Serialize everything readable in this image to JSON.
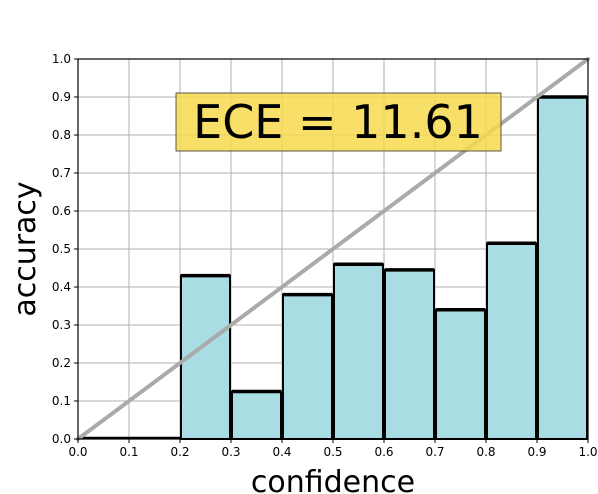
{
  "chart_data": {
    "type": "bar",
    "xlabel": "confidence",
    "ylabel": "accuracy",
    "xlim": [
      0.0,
      1.0
    ],
    "ylim": [
      0.0,
      1.0
    ],
    "grid": true,
    "x_ticks": [
      "0.0",
      "0.1",
      "0.2",
      "0.3",
      "0.4",
      "0.5",
      "0.6",
      "0.7",
      "0.8",
      "0.9",
      "1.0"
    ],
    "y_ticks": [
      "0.0",
      "0.1",
      "0.2",
      "0.3",
      "0.4",
      "0.5",
      "0.6",
      "0.7",
      "0.8",
      "0.9",
      "1.0"
    ],
    "bins": [
      {
        "x0": 0.0,
        "x1": 0.1,
        "value": 0.0
      },
      {
        "x0": 0.1,
        "x1": 0.2,
        "value": 0.0
      },
      {
        "x0": 0.2,
        "x1": 0.3,
        "value": 0.43
      },
      {
        "x0": 0.3,
        "x1": 0.4,
        "value": 0.125
      },
      {
        "x0": 0.4,
        "x1": 0.5,
        "value": 0.38
      },
      {
        "x0": 0.5,
        "x1": 0.6,
        "value": 0.46
      },
      {
        "x0": 0.6,
        "x1": 0.7,
        "value": 0.445
      },
      {
        "x0": 0.7,
        "x1": 0.8,
        "value": 0.34
      },
      {
        "x0": 0.8,
        "x1": 0.9,
        "value": 0.515
      },
      {
        "x0": 0.9,
        "x1": 1.0,
        "value": 0.9
      }
    ],
    "reference_line": {
      "from": [
        0.0,
        0.0
      ],
      "to": [
        1.0,
        1.0
      ],
      "color": "#aaaaaa"
    },
    "annotation": {
      "text": "ECE = 11.61",
      "background": "#f7d94c"
    },
    "bar_color": "#aadde3",
    "edge_color": "#000000"
  }
}
